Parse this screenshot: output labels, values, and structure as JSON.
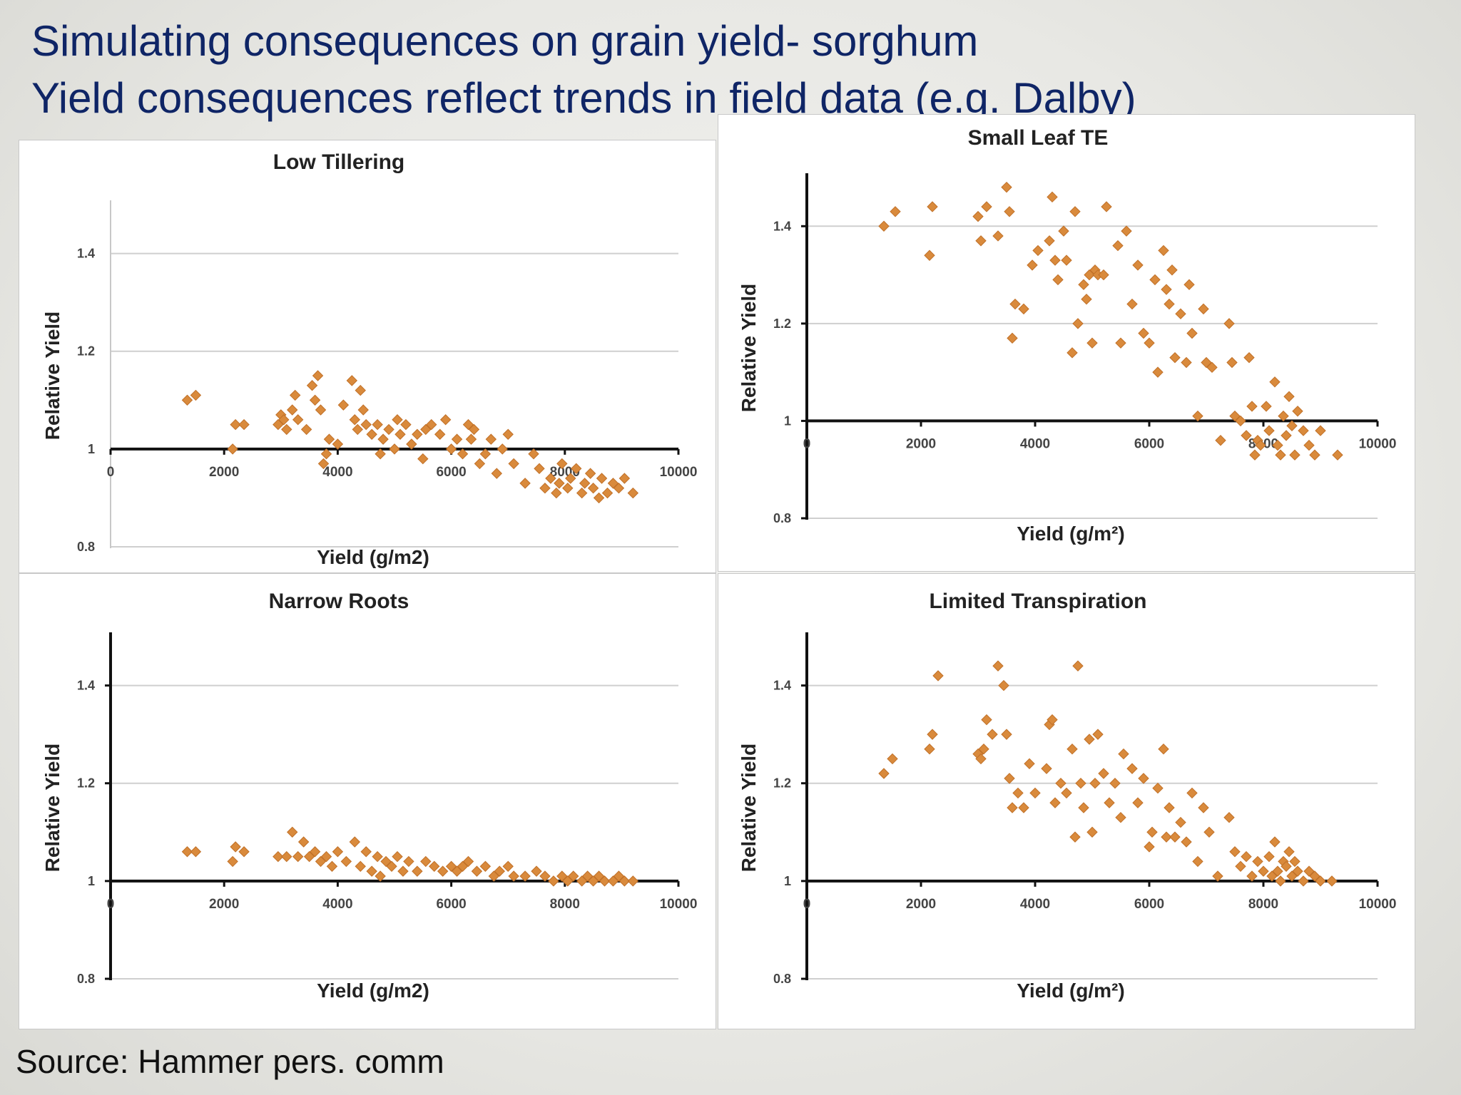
{
  "slide": {
    "title_line1": "Simulating consequences on grain yield- sorghum",
    "title_line2": "Yield consequences reflect trends in field data (e.g. Dalby)",
    "source": "Source: Hammer pers. comm",
    "title_color": "#0f2566",
    "marker_color": "#d98a3c"
  },
  "chart_data": [
    {
      "type": "scatter",
      "title": "Low Tillering",
      "xlabel": "Yield (g/m2)",
      "ylabel": "Relative Yield",
      "xlim": [
        0,
        10000
      ],
      "ylim": [
        0.8,
        1.5
      ],
      "xticks": [
        "0",
        "2000",
        "4000",
        "6000",
        "8000",
        "10000"
      ],
      "yticks": [
        "0.8",
        "1",
        "1.2",
        "1.4"
      ],
      "points": [
        [
          1350,
          1.1
        ],
        [
          1500,
          1.11
        ],
        [
          2150,
          1.0
        ],
        [
          2200,
          1.05
        ],
        [
          2350,
          1.05
        ],
        [
          2950,
          1.05
        ],
        [
          3000,
          1.07
        ],
        [
          3050,
          1.06
        ],
        [
          3100,
          1.04
        ],
        [
          3200,
          1.08
        ],
        [
          3250,
          1.11
        ],
        [
          3300,
          1.06
        ],
        [
          3450,
          1.04
        ],
        [
          3550,
          1.13
        ],
        [
          3600,
          1.1
        ],
        [
          3650,
          1.15
        ],
        [
          3700,
          1.08
        ],
        [
          3750,
          0.97
        ],
        [
          3800,
          0.99
        ],
        [
          3850,
          1.02
        ],
        [
          4000,
          1.01
        ],
        [
          4100,
          1.09
        ],
        [
          4250,
          1.14
        ],
        [
          4300,
          1.06
        ],
        [
          4350,
          1.04
        ],
        [
          4400,
          1.12
        ],
        [
          4450,
          1.08
        ],
        [
          4500,
          1.05
        ],
        [
          4600,
          1.03
        ],
        [
          4700,
          1.05
        ],
        [
          4750,
          0.99
        ],
        [
          4800,
          1.02
        ],
        [
          4900,
          1.04
        ],
        [
          5000,
          1.0
        ],
        [
          5050,
          1.06
        ],
        [
          5100,
          1.03
        ],
        [
          5200,
          1.05
        ],
        [
          5300,
          1.01
        ],
        [
          5400,
          1.03
        ],
        [
          5500,
          0.98
        ],
        [
          5550,
          1.04
        ],
        [
          5650,
          1.05
        ],
        [
          5800,
          1.03
        ],
        [
          5900,
          1.06
        ],
        [
          6000,
          1.0
        ],
        [
          6100,
          1.02
        ],
        [
          6200,
          0.99
        ],
        [
          6300,
          1.05
        ],
        [
          6350,
          1.02
        ],
        [
          6400,
          1.04
        ],
        [
          6500,
          0.97
        ],
        [
          6600,
          0.99
        ],
        [
          6700,
          1.02
        ],
        [
          6800,
          0.95
        ],
        [
          6900,
          1.0
        ],
        [
          7000,
          1.03
        ],
        [
          7100,
          0.97
        ],
        [
          7300,
          0.93
        ],
        [
          7450,
          0.99
        ],
        [
          7550,
          0.96
        ],
        [
          7650,
          0.92
        ],
        [
          7750,
          0.94
        ],
        [
          7850,
          0.91
        ],
        [
          7900,
          0.93
        ],
        [
          7950,
          0.97
        ],
        [
          8050,
          0.92
        ],
        [
          8100,
          0.94
        ],
        [
          8200,
          0.96
        ],
        [
          8300,
          0.91
        ],
        [
          8350,
          0.93
        ],
        [
          8450,
          0.95
        ],
        [
          8500,
          0.92
        ],
        [
          8600,
          0.9
        ],
        [
          8650,
          0.94
        ],
        [
          8750,
          0.91
        ],
        [
          8850,
          0.93
        ],
        [
          8950,
          0.92
        ],
        [
          9050,
          0.94
        ],
        [
          9200,
          0.91
        ]
      ]
    },
    {
      "type": "scatter",
      "title": "Small Leaf TE",
      "xlabel": "Yield (g/m²)",
      "ylabel": "Relative Yield",
      "xlim": [
        0,
        10000
      ],
      "ylim": [
        0.8,
        1.5
      ],
      "xticks": [
        "0",
        "2000",
        "4000",
        "6000",
        "8000",
        "10000"
      ],
      "yticks": [
        "0.8",
        "1",
        "1.2",
        "1.4"
      ],
      "points": [
        [
          1350,
          1.4
        ],
        [
          1550,
          1.43
        ],
        [
          2150,
          1.34
        ],
        [
          2200,
          1.44
        ],
        [
          3000,
          1.42
        ],
        [
          3050,
          1.37
        ],
        [
          3150,
          1.44
        ],
        [
          3350,
          1.38
        ],
        [
          3500,
          1.48
        ],
        [
          3550,
          1.43
        ],
        [
          3600,
          1.17
        ],
        [
          3650,
          1.24
        ],
        [
          3800,
          1.23
        ],
        [
          3950,
          1.32
        ],
        [
          4050,
          1.35
        ],
        [
          4250,
          1.37
        ],
        [
          4300,
          1.46
        ],
        [
          4350,
          1.33
        ],
        [
          4400,
          1.29
        ],
        [
          4500,
          1.39
        ],
        [
          4550,
          1.33
        ],
        [
          4650,
          1.14
        ],
        [
          4700,
          1.43
        ],
        [
          4750,
          1.2
        ],
        [
          4850,
          1.28
        ],
        [
          4900,
          1.25
        ],
        [
          4950,
          1.3
        ],
        [
          5000,
          1.16
        ],
        [
          5050,
          1.31
        ],
        [
          5100,
          1.3
        ],
        [
          5200,
          1.3
        ],
        [
          5250,
          1.44
        ],
        [
          5450,
          1.36
        ],
        [
          5500,
          1.16
        ],
        [
          5600,
          1.39
        ],
        [
          5700,
          1.24
        ],
        [
          5800,
          1.32
        ],
        [
          5900,
          1.18
        ],
        [
          6000,
          1.16
        ],
        [
          6100,
          1.29
        ],
        [
          6150,
          1.1
        ],
        [
          6250,
          1.35
        ],
        [
          6300,
          1.27
        ],
        [
          6350,
          1.24
        ],
        [
          6400,
          1.31
        ],
        [
          6450,
          1.13
        ],
        [
          6550,
          1.22
        ],
        [
          6650,
          1.12
        ],
        [
          6700,
          1.28
        ],
        [
          6750,
          1.18
        ],
        [
          6850,
          1.01
        ],
        [
          6950,
          1.23
        ],
        [
          7000,
          1.12
        ],
        [
          7100,
          1.11
        ],
        [
          7250,
          0.96
        ],
        [
          7400,
          1.2
        ],
        [
          7450,
          1.12
        ],
        [
          7500,
          1.01
        ],
        [
          7600,
          1.0
        ],
        [
          7700,
          0.97
        ],
        [
          7750,
          1.13
        ],
        [
          7800,
          1.03
        ],
        [
          7850,
          0.93
        ],
        [
          7900,
          0.96
        ],
        [
          7950,
          0.95
        ],
        [
          8050,
          1.03
        ],
        [
          8100,
          0.98
        ],
        [
          8200,
          1.08
        ],
        [
          8250,
          0.95
        ],
        [
          8300,
          0.93
        ],
        [
          8350,
          1.01
        ],
        [
          8400,
          0.97
        ],
        [
          8450,
          1.05
        ],
        [
          8500,
          0.99
        ],
        [
          8550,
          0.93
        ],
        [
          8600,
          1.02
        ],
        [
          8700,
          0.98
        ],
        [
          8800,
          0.95
        ],
        [
          8900,
          0.93
        ],
        [
          9000,
          0.98
        ],
        [
          9300,
          0.93
        ]
      ]
    },
    {
      "type": "scatter",
      "title": "Narrow Roots",
      "xlabel": "Yield (g/m2)",
      "ylabel": "Relative Yield",
      "xlim": [
        0,
        10000
      ],
      "ylim": [
        0.8,
        1.5
      ],
      "xticks": [
        "0",
        "2000",
        "4000",
        "6000",
        "8000",
        "10000"
      ],
      "yticks": [
        "0.8",
        "1",
        "1.2",
        "1.4"
      ],
      "points": [
        [
          1350,
          1.06
        ],
        [
          1500,
          1.06
        ],
        [
          2150,
          1.04
        ],
        [
          2200,
          1.07
        ],
        [
          2350,
          1.06
        ],
        [
          2950,
          1.05
        ],
        [
          3100,
          1.05
        ],
        [
          3200,
          1.1
        ],
        [
          3300,
          1.05
        ],
        [
          3400,
          1.08
        ],
        [
          3500,
          1.05
        ],
        [
          3600,
          1.06
        ],
        [
          3700,
          1.04
        ],
        [
          3800,
          1.05
        ],
        [
          3900,
          1.03
        ],
        [
          4000,
          1.06
        ],
        [
          4150,
          1.04
        ],
        [
          4300,
          1.08
        ],
        [
          4400,
          1.03
        ],
        [
          4500,
          1.06
        ],
        [
          4600,
          1.02
        ],
        [
          4700,
          1.05
        ],
        [
          4750,
          1.01
        ],
        [
          4850,
          1.04
        ],
        [
          4950,
          1.03
        ],
        [
          5050,
          1.05
        ],
        [
          5150,
          1.02
        ],
        [
          5250,
          1.04
        ],
        [
          5400,
          1.02
        ],
        [
          5550,
          1.04
        ],
        [
          5700,
          1.03
        ],
        [
          5850,
          1.02
        ],
        [
          6000,
          1.03
        ],
        [
          6100,
          1.02
        ],
        [
          6200,
          1.03
        ],
        [
          6300,
          1.04
        ],
        [
          6450,
          1.02
        ],
        [
          6600,
          1.03
        ],
        [
          6750,
          1.01
        ],
        [
          6850,
          1.02
        ],
        [
          7000,
          1.03
        ],
        [
          7100,
          1.01
        ],
        [
          7300,
          1.01
        ],
        [
          7500,
          1.02
        ],
        [
          7650,
          1.01
        ],
        [
          7800,
          1.0
        ],
        [
          7950,
          1.01
        ],
        [
          8050,
          1.0
        ],
        [
          8150,
          1.01
        ],
        [
          8300,
          1.0
        ],
        [
          8400,
          1.01
        ],
        [
          8500,
          1.0
        ],
        [
          8600,
          1.01
        ],
        [
          8700,
          1.0
        ],
        [
          8850,
          1.0
        ],
        [
          8950,
          1.01
        ],
        [
          9050,
          1.0
        ],
        [
          9200,
          1.0
        ]
      ]
    },
    {
      "type": "scatter",
      "title": "Limited Transpiration",
      "xlabel": "Yield (g/m²)",
      "ylabel": "Relative Yield",
      "xlim": [
        0,
        10000
      ],
      "ylim": [
        0.8,
        1.5
      ],
      "xticks": [
        "0",
        "2000",
        "4000",
        "6000",
        "8000",
        "10000"
      ],
      "yticks": [
        "0.8",
        "1",
        "1.2",
        "1.4"
      ],
      "points": [
        [
          1350,
          1.22
        ],
        [
          1500,
          1.25
        ],
        [
          2150,
          1.27
        ],
        [
          2200,
          1.3
        ],
        [
          2300,
          1.42
        ],
        [
          3000,
          1.26
        ],
        [
          3050,
          1.25
        ],
        [
          3100,
          1.27
        ],
        [
          3150,
          1.33
        ],
        [
          3250,
          1.3
        ],
        [
          3350,
          1.44
        ],
        [
          3450,
          1.4
        ],
        [
          3500,
          1.3
        ],
        [
          3550,
          1.21
        ],
        [
          3600,
          1.15
        ],
        [
          3700,
          1.18
        ],
        [
          3800,
          1.15
        ],
        [
          3900,
          1.24
        ],
        [
          4000,
          1.18
        ],
        [
          4200,
          1.23
        ],
        [
          4250,
          1.32
        ],
        [
          4300,
          1.33
        ],
        [
          4350,
          1.16
        ],
        [
          4450,
          1.2
        ],
        [
          4550,
          1.18
        ],
        [
          4650,
          1.27
        ],
        [
          4700,
          1.09
        ],
        [
          4750,
          1.44
        ],
        [
          4800,
          1.2
        ],
        [
          4850,
          1.15
        ],
        [
          4950,
          1.29
        ],
        [
          5000,
          1.1
        ],
        [
          5050,
          1.2
        ],
        [
          5100,
          1.3
        ],
        [
          5200,
          1.22
        ],
        [
          5300,
          1.16
        ],
        [
          5400,
          1.2
        ],
        [
          5500,
          1.13
        ],
        [
          5550,
          1.26
        ],
        [
          5700,
          1.23
        ],
        [
          5800,
          1.16
        ],
        [
          5900,
          1.21
        ],
        [
          6000,
          1.07
        ],
        [
          6050,
          1.1
        ],
        [
          6150,
          1.19
        ],
        [
          6250,
          1.27
        ],
        [
          6300,
          1.09
        ],
        [
          6350,
          1.15
        ],
        [
          6450,
          1.09
        ],
        [
          6550,
          1.12
        ],
        [
          6650,
          1.08
        ],
        [
          6750,
          1.18
        ],
        [
          6850,
          1.04
        ],
        [
          6950,
          1.15
        ],
        [
          7050,
          1.1
        ],
        [
          7200,
          1.01
        ],
        [
          7400,
          1.13
        ],
        [
          7500,
          1.06
        ],
        [
          7600,
          1.03
        ],
        [
          7700,
          1.05
        ],
        [
          7800,
          1.01
        ],
        [
          7900,
          1.04
        ],
        [
          8000,
          1.02
        ],
        [
          8100,
          1.05
        ],
        [
          8150,
          1.01
        ],
        [
          8200,
          1.08
        ],
        [
          8250,
          1.02
        ],
        [
          8300,
          1.0
        ],
        [
          8350,
          1.04
        ],
        [
          8400,
          1.03
        ],
        [
          8450,
          1.06
        ],
        [
          8500,
          1.01
        ],
        [
          8550,
          1.04
        ],
        [
          8600,
          1.02
        ],
        [
          8700,
          1.0
        ],
        [
          8800,
          1.02
        ],
        [
          8900,
          1.01
        ],
        [
          9000,
          1.0
        ],
        [
          9200,
          1.0
        ]
      ]
    }
  ]
}
